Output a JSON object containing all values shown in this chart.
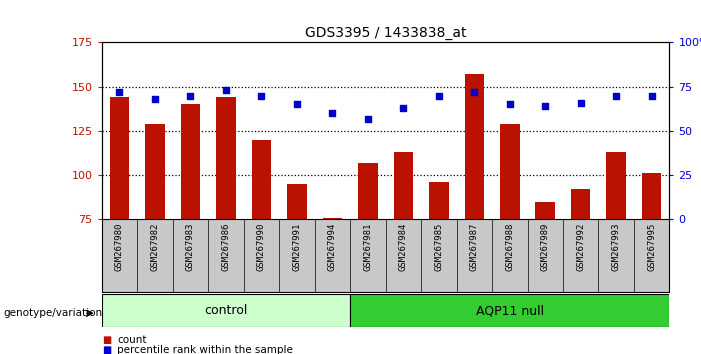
{
  "title": "GDS3395 / 1433838_at",
  "samples": [
    "GSM267980",
    "GSM267982",
    "GSM267983",
    "GSM267986",
    "GSM267990",
    "GSM267991",
    "GSM267994",
    "GSM267981",
    "GSM267984",
    "GSM267985",
    "GSM267987",
    "GSM267988",
    "GSM267989",
    "GSM267992",
    "GSM267993",
    "GSM267995"
  ],
  "counts": [
    144,
    129,
    140,
    144,
    120,
    95,
    76,
    107,
    113,
    96,
    157,
    129,
    85,
    92,
    113,
    101
  ],
  "percentiles": [
    72,
    68,
    70,
    73,
    70,
    65,
    60,
    57,
    63,
    70,
    72,
    65,
    64,
    66,
    70,
    70
  ],
  "groups": [
    "control",
    "control",
    "control",
    "control",
    "control",
    "control",
    "control",
    "AQP11 null",
    "AQP11 null",
    "AQP11 null",
    "AQP11 null",
    "AQP11 null",
    "AQP11 null",
    "AQP11 null",
    "AQP11 null",
    "AQP11 null"
  ],
  "ylim_left": [
    75,
    175
  ],
  "ylim_right": [
    0,
    100
  ],
  "yticks_left": [
    75,
    100,
    125,
    150,
    175
  ],
  "yticks_right": [
    0,
    25,
    50,
    75,
    100
  ],
  "bar_color": "#bb1100",
  "dot_color": "#0000cc",
  "control_color": "#ccffcc",
  "aqp11_color": "#33cc33",
  "bg_color": "#c8c8c8",
  "plot_bg": "#ffffff",
  "legend_count": "count",
  "legend_pct": "percentile rank within the sample",
  "genotype_label": "genotype/variation"
}
